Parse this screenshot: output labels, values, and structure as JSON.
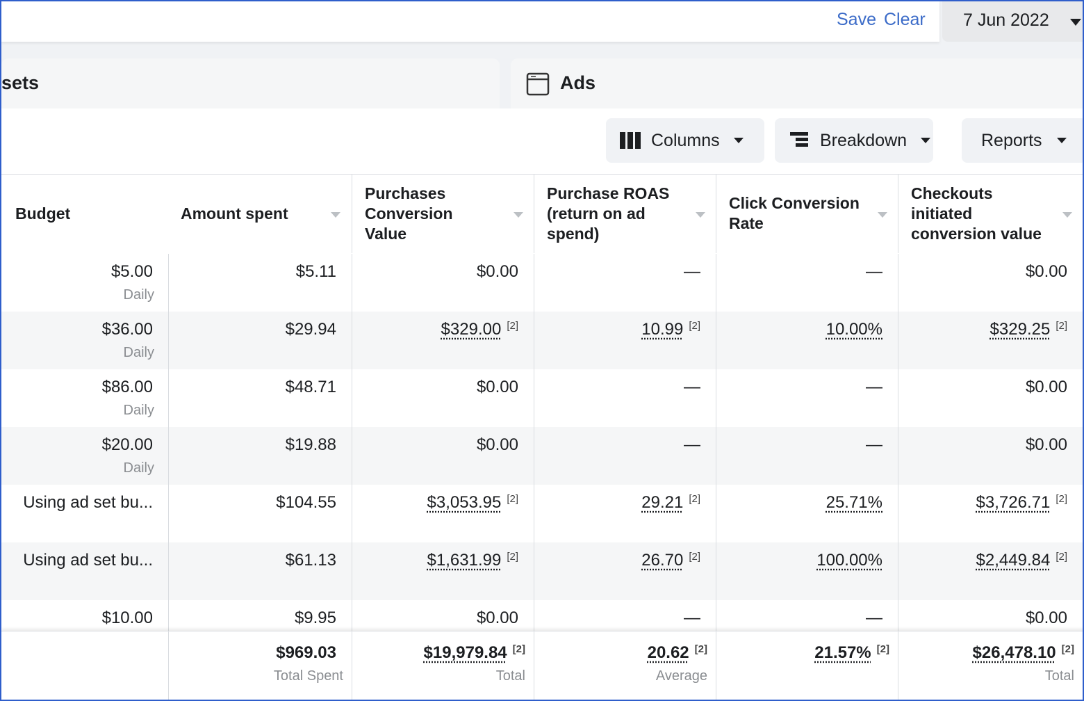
{
  "toolbar": {
    "save": "Save",
    "clear": "Clear",
    "date": "7 Jun 2022"
  },
  "tabs": [
    "sets",
    "Ads"
  ],
  "buttons": [
    "Columns",
    "Breakdown",
    "Reports"
  ],
  "table": {
    "headers": [
      "Budget",
      "Amount spent",
      "Purchases Conversion Value",
      "Purchase ROAS (return on ad spend)",
      "Click Conversion Rate",
      "Checkouts initiated conversion value"
    ],
    "rows": [
      {
        "budget": "$5.00",
        "budget_period": "Daily",
        "cells": [
          {
            "text": "$5.11"
          },
          {
            "text": "$0.00"
          },
          {
            "text": "—"
          },
          {
            "text": "—"
          },
          {
            "text": "$0.00"
          }
        ]
      },
      {
        "budget": "$36.00",
        "budget_period": "Daily",
        "cells": [
          {
            "text": "$29.94"
          },
          {
            "text": "$329.00",
            "ref": "[2]"
          },
          {
            "text": "10.99",
            "ref": "[2]"
          },
          {
            "text": "10.00%"
          },
          {
            "text": "$329.25",
            "ref": "[2]"
          }
        ]
      },
      {
        "budget": "$86.00",
        "budget_period": "Daily",
        "cells": [
          {
            "text": "$48.71"
          },
          {
            "text": "$0.00"
          },
          {
            "text": "—"
          },
          {
            "text": "—"
          },
          {
            "text": "$0.00"
          }
        ]
      },
      {
        "budget": "$20.00",
        "budget_period": "Daily",
        "cells": [
          {
            "text": "$19.88"
          },
          {
            "text": "$0.00"
          },
          {
            "text": "—"
          },
          {
            "text": "—"
          },
          {
            "text": "$0.00"
          }
        ]
      },
      {
        "budget": "Using ad set bu...",
        "cells": [
          {
            "text": "$104.55"
          },
          {
            "text": "$3,053.95",
            "ref": "[2]"
          },
          {
            "text": "29.21",
            "ref": "[2]"
          },
          {
            "text": "25.71%"
          },
          {
            "text": "$3,726.71",
            "ref": "[2]"
          }
        ]
      },
      {
        "budget": "Using ad set bu...",
        "cells": [
          {
            "text": "$61.13"
          },
          {
            "text": "$1,631.99",
            "ref": "[2]"
          },
          {
            "text": "26.70",
            "ref": "[2]"
          },
          {
            "text": "100.00%"
          },
          {
            "text": "$2,449.84",
            "ref": "[2]"
          }
        ]
      },
      {
        "budget": "$10.00",
        "cells": [
          {
            "text": "$9.95"
          },
          {
            "text": "$0.00"
          },
          {
            "text": "—"
          },
          {
            "text": "—"
          },
          {
            "text": "$0.00"
          }
        ]
      }
    ],
    "totals": [
      {
        "text": "$969.03",
        "label": "Total Spent"
      },
      {
        "text": "$19,979.84",
        "ref": "[2]",
        "label": "Total"
      },
      {
        "text": "20.62",
        "ref": "[2]",
        "label": "Average"
      },
      {
        "text": "21.57%",
        "ref": "[2]"
      },
      {
        "text": "$26,478.10",
        "ref": "[2]",
        "label": "Total"
      }
    ]
  }
}
